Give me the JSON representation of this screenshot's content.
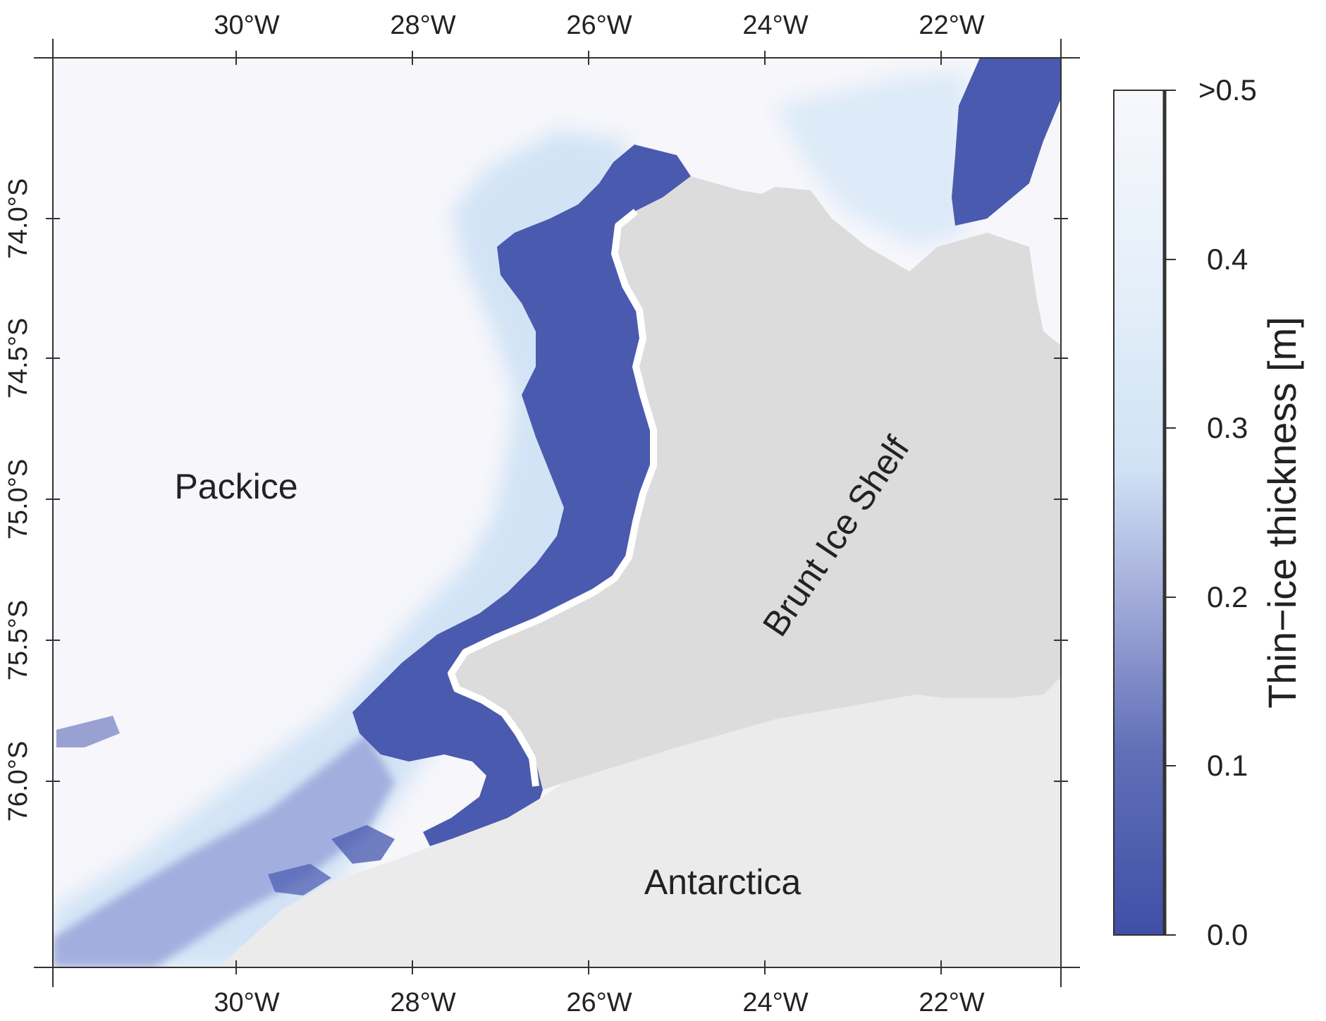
{
  "map": {
    "lon_labels": [
      "30°W",
      "28°W",
      "26°W",
      "24°W",
      "22°W"
    ],
    "lat_labels": [
      "74.0°S",
      "74.5°S",
      "75.0°S",
      "75.5°S",
      "76.0°S"
    ],
    "regions": {
      "packice": "Packice",
      "shelf": "Brunt Ice Shelf",
      "continent": "Antarctica"
    },
    "colors": {
      "packice": "#f6f6fb",
      "shelf": "#dcdcdc",
      "continent": "#ebebeb",
      "thin_ice_dark": "#4455a8",
      "thin_ice_mid": "#8a98d2",
      "thin_ice_light": "#c9e1f4"
    }
  },
  "colorbar": {
    "title": "Thin−ice thickness [m]",
    "tick_labels": [
      ">0.5",
      "0.4",
      "0.3",
      "0.2",
      "0.1",
      "0.0"
    ],
    "range": [
      0.0,
      0.5
    ],
    "colors": [
      "#3f4fa6",
      "#7d86c4",
      "#a9b2dd",
      "#cde3f5",
      "#f7f8fc"
    ]
  }
}
